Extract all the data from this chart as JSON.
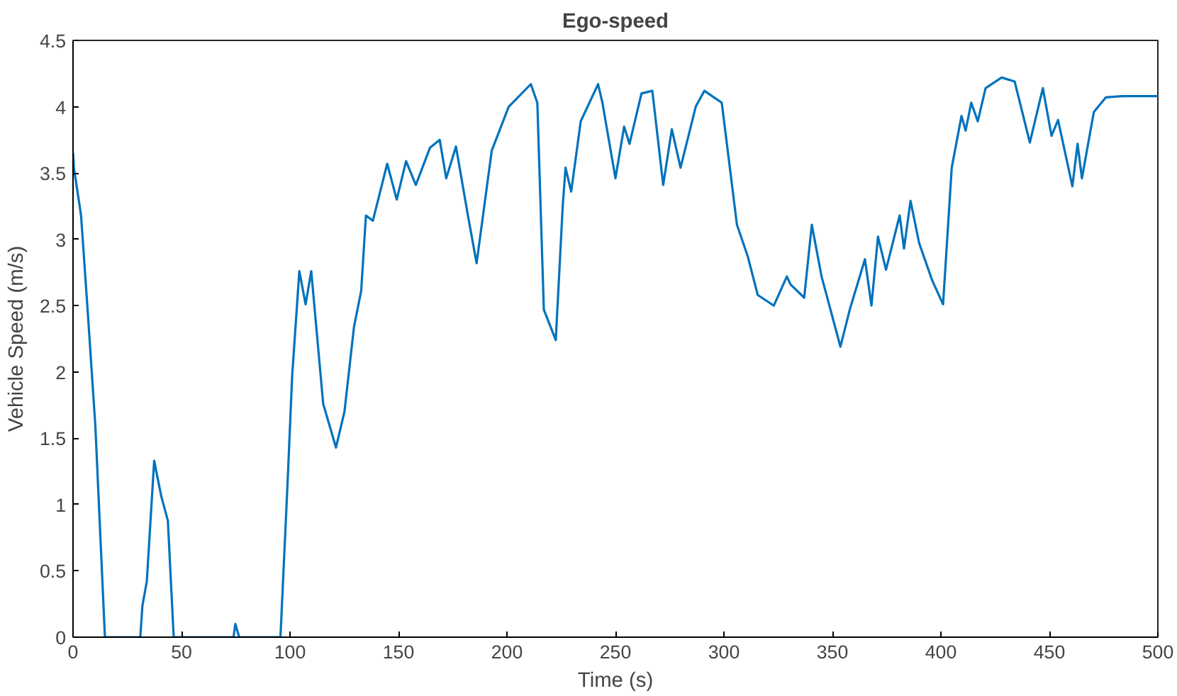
{
  "chart_data": {
    "type": "line",
    "title": "Ego-speed",
    "xlabel": "Time (s)",
    "ylabel": "Vehicle Speed (m/s)",
    "xlim": [
      0,
      500
    ],
    "ylim": [
      0,
      4.5
    ],
    "xticks": [
      0,
      50,
      100,
      150,
      200,
      250,
      300,
      350,
      400,
      450,
      500
    ],
    "yticks": [
      0,
      0.5,
      1,
      1.5,
      2,
      2.5,
      3,
      3.5,
      4,
      4.5
    ],
    "grid": false,
    "marker": "none",
    "line_style": "solid",
    "series": [
      {
        "color": "#0072bd",
        "x": [
          0,
          0.4,
          3.7,
          7,
          10.3,
          14.7,
          31,
          32,
          34,
          37.4,
          40.7,
          43.7,
          46.4,
          74,
          74.8,
          76.6,
          95.6,
          98.9,
          101,
          104.3,
          107.2,
          109.8,
          115.3,
          121.2,
          125.1,
          129.5,
          132.8,
          135,
          138.2,
          144.8,
          149.2,
          153.5,
          158,
          164.5,
          169,
          172,
          176.5,
          182,
          186,
          193,
          200.8,
          211,
          214,
          217,
          222.5,
          225.7,
          227,
          229.6,
          234,
          242,
          244,
          250,
          254,
          256.5,
          262,
          267,
          272,
          276,
          280,
          287,
          291,
          299,
          306,
          311,
          315.6,
          323,
          329,
          330.7,
          337,
          340.5,
          345,
          353.7,
          358,
          365,
          368,
          371,
          374.7,
          381,
          383,
          386,
          390,
          396,
          401,
          405,
          409.5,
          411.4,
          414,
          417,
          420.6,
          428,
          434,
          441,
          447,
          451,
          454,
          460.6,
          463,
          465,
          470.5,
          476,
          483.6,
          500
        ],
        "values": [
          3.65,
          3.54,
          3.18,
          2.4,
          1.59,
          0,
          0,
          0.24,
          0.42,
          1.33,
          1.06,
          0.88,
          0,
          0,
          0.1,
          0,
          0,
          1.17,
          1.97,
          2.76,
          2.51,
          2.76,
          1.76,
          1.43,
          1.7,
          2.34,
          2.61,
          3.18,
          3.14,
          3.57,
          3.3,
          3.59,
          3.41,
          3.69,
          3.75,
          3.46,
          3.7,
          3.18,
          2.82,
          3.67,
          4.0,
          4.17,
          4.03,
          2.47,
          2.24,
          3.25,
          3.54,
          3.36,
          3.89,
          4.17,
          4.03,
          3.46,
          3.85,
          3.72,
          4.1,
          4.12,
          3.41,
          3.83,
          3.54,
          4.0,
          4.12,
          4.03,
          3.11,
          2.87,
          2.58,
          2.5,
          2.72,
          2.66,
          2.56,
          3.11,
          2.72,
          2.19,
          2.47,
          2.85,
          2.5,
          3.02,
          2.77,
          3.18,
          2.93,
          3.29,
          2.97,
          2.69,
          2.51,
          3.54,
          3.93,
          3.82,
          4.03,
          3.89,
          4.14,
          4.22,
          4.19,
          3.73,
          4.14,
          3.78,
          3.9,
          3.4,
          3.72,
          3.46,
          3.96,
          4.07,
          4.08,
          4.08
        ]
      }
    ]
  }
}
